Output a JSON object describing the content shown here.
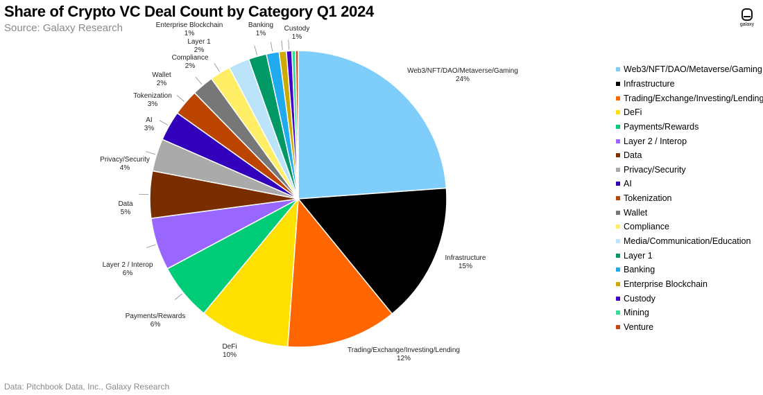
{
  "title": "Share of Crypto VC Deal Count by Category Q1 2024",
  "subtitle": "Source: Galaxy Research",
  "footer": "Data: Pitchbook Data, Inc., Galaxy Research",
  "logo_text": "galaxy",
  "chart_data": {
    "type": "pie",
    "title": "Share of Crypto VC Deal Count by Category Q1 2024",
    "legend_position": "right",
    "slices": [
      {
        "name": "Web3/NFT/DAO/Metaverse/Gaming",
        "value": 24.2,
        "label": "24%",
        "color": "#7fcdfb",
        "show_label": true
      },
      {
        "name": "Infrastructure",
        "value": 15.5,
        "label": "15%",
        "color": "#000000",
        "show_label": true
      },
      {
        "name": "Trading/Exchange/Investing/Lending",
        "value": 12.2,
        "label": "12%",
        "color": "#ff6600",
        "show_label": true
      },
      {
        "name": "DeFi",
        "value": 10.0,
        "label": "10%",
        "color": "#ffe000",
        "show_label": true
      },
      {
        "name": "Payments/Rewards",
        "value": 6.3,
        "label": "6%",
        "color": "#00cc77",
        "show_label": true
      },
      {
        "name": "Layer 2 / Interop",
        "value": 5.8,
        "label": "6%",
        "color": "#9966ff",
        "show_label": true
      },
      {
        "name": "Data",
        "value": 5.2,
        "label": "5%",
        "color": "#7a2e00",
        "show_label": true
      },
      {
        "name": "Privacy/Security",
        "value": 3.6,
        "label": "4%",
        "color": "#aaaaaa",
        "show_label": true
      },
      {
        "name": "AI",
        "value": 3.3,
        "label": "3%",
        "color": "#3300bb",
        "show_label": true
      },
      {
        "name": "Tokenization",
        "value": 2.9,
        "label": "3%",
        "color": "#bb4400",
        "show_label": true
      },
      {
        "name": "Wallet",
        "value": 2.4,
        "label": "2%",
        "color": "#777777",
        "show_label": true
      },
      {
        "name": "Compliance",
        "value": 2.3,
        "label": "2%",
        "color": "#ffee66",
        "show_label": true
      },
      {
        "name": "Media/Communication/Education",
        "value": 2.3,
        "label": "",
        "color": "#bbe4fa",
        "show_label": false
      },
      {
        "name": "Layer 1",
        "value": 2.0,
        "label": "2%",
        "color": "#009966",
        "show_label": true
      },
      {
        "name": "Banking",
        "value": 1.4,
        "label": "1%",
        "color": "#22aaee",
        "show_label": true
      },
      {
        "name": "Enterprise Blockchain",
        "value": 0.8,
        "label": "1%",
        "color": "#ccaa00",
        "show_label": true
      },
      {
        "name": "Custody",
        "value": 0.6,
        "label": "1%",
        "color": "#4400cc",
        "show_label": true
      },
      {
        "name": "Mining",
        "value": 0.4,
        "label": "",
        "color": "#33dd99",
        "show_label": false
      },
      {
        "name": "Venture",
        "value": 0.3,
        "label": "",
        "color": "#cc4411",
        "show_label": false
      }
    ]
  }
}
